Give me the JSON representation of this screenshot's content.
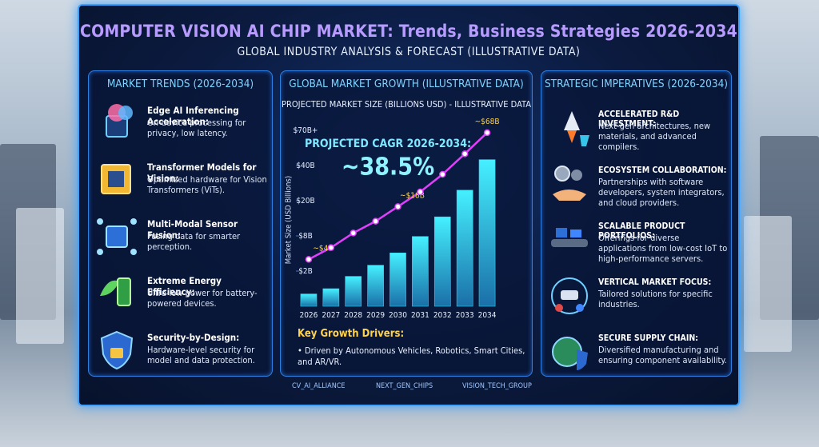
{
  "header": {
    "title": "COMPUTER VISION AI CHIP MARKET: Trends, Business Strategies 2026-2034",
    "subtitle": "GLOBAL INDUSTRY ANALYSIS & FORECAST (ILLUSTRATIVE DATA)"
  },
  "trends": {
    "title": "MARKET TRENDS (2026-2034)",
    "items": [
      {
        "heading": "Edge AI Inferencing Acceleration:",
        "text": "On-device processing for privacy, low latency."
      },
      {
        "heading": "Transformer Models for Vision:",
        "text": "Optimized hardware for Vision Transformers (ViTs)."
      },
      {
        "heading": "Multi-Modal Sensor Fusion:",
        "text": "Fusing data for smarter perception."
      },
      {
        "heading": "Extreme Energy Efficiency:",
        "text": "Ultra-low power for battery-powered devices."
      },
      {
        "heading": "Security-by-Design:",
        "text": "Hardware-level security for model and data protection."
      }
    ]
  },
  "chart_data": {
    "type": "bar",
    "title": "GLOBAL MARKET GROWTH (ILLUSTRATIVE DATA)",
    "subtitle": "PROJECTED MARKET SIZE (BILLIONS USD) - ILLUSTRATIVE DATA",
    "y_label": "Market Size (USD Billions)",
    "categories": [
      "2026",
      "2027",
      "2028",
      "2029",
      "2030",
      "2031",
      "2032",
      "2033",
      "2034"
    ],
    "series": [
      {
        "type": "bar",
        "color": "#2fd4e8",
        "values": [
          0.7,
          1,
          1.7,
          3,
          5.1,
          7.9,
          14.5,
          26,
          45
        ]
      },
      {
        "type": "line",
        "color": "#e040fb",
        "values": [
          4,
          6,
          9,
          13,
          18,
          25,
          35,
          50,
          68
        ],
        "value_labels": [
          "~$4B",
          null,
          null,
          null,
          "~$18B",
          null,
          null,
          null,
          "~$68B"
        ]
      }
    ],
    "ylim": [
      0,
      70
    ],
    "yticks": [
      {
        "value": 2,
        "label": "$2B"
      },
      {
        "value": 8,
        "label": "$8B"
      },
      {
        "value": 20,
        "label": "$20B"
      },
      {
        "value": 40,
        "label": "$40B"
      },
      {
        "value": 70,
        "label": "$70B+"
      }
    ],
    "annotations": [
      "PROJECTED CAGR 2026-2034:",
      "~38.5%"
    ],
    "drivers_title": "Key Growth Drivers:",
    "drivers_text": "Driven by Autonomous Vehicles, Robotics, Smart Cities, and AR/VR."
  },
  "strategies": {
    "title": "STRATEGIC IMPERATIVES (2026-2034)",
    "items": [
      {
        "heading": "ACCELERATED R&D INVESTMENT:",
        "text": "Next-gen architectures, new materials, and advanced compilers."
      },
      {
        "heading": "ECOSYSTEM COLLABORATION:",
        "text": "Partnerships with software developers, system integrators, and cloud providers."
      },
      {
        "heading": "SCALABLE PRODUCT PORTFOLIOS:",
        "text": "Offerings for diverse applications from low-cost IoT to high-performance servers."
      },
      {
        "heading": "VERTICAL MARKET FOCUS:",
        "text": "Tailored solutions for specific industries."
      },
      {
        "heading": "SECURE SUPPLY CHAIN:",
        "text": "Diversified manufacturing and ensuring component availability."
      }
    ]
  },
  "footer": {
    "logos": [
      "CV_AI_ALLIANCE",
      "NEXT_GEN_CHIPS",
      "VISION_TECH_GROUP"
    ]
  }
}
